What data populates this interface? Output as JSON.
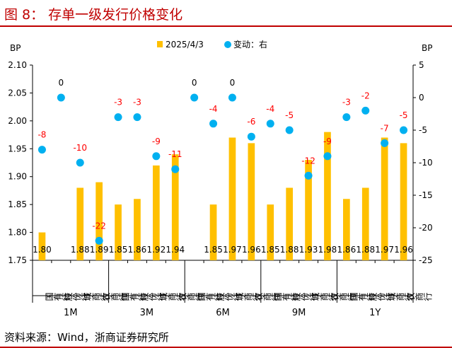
{
  "title": "图 8：   存单一级发行价格变化",
  "source": "资料来源：Wind，浙商证券研究所",
  "chart_data": {
    "type": "bar",
    "left_unit": "BP",
    "right_unit": "BP",
    "groups": [
      "1M",
      "3M",
      "6M",
      "9M",
      "1Y"
    ],
    "categories": [
      "国有行",
      "股份行",
      "城商行",
      "农商行",
      "国有行",
      "股份行",
      "城商行",
      "农商行",
      "国有行",
      "股份行",
      "城商行",
      "农商行",
      "国有行",
      "股份行",
      "城商行",
      "农商行",
      "国有行",
      "股份行",
      "城商行",
      "农商行"
    ],
    "series": [
      {
        "name": "2025/4/3",
        "type": "bar",
        "axis": "left",
        "color": "#FFC000",
        "values": [
          1.8,
          null,
          1.88,
          1.89,
          1.85,
          1.86,
          1.92,
          1.94,
          null,
          1.85,
          1.97,
          1.96,
          1.85,
          1.88,
          1.93,
          1.98,
          1.86,
          1.88,
          1.97,
          1.96
        ],
        "labels": [
          "1.80",
          "",
          "1.88",
          "1.89",
          "1.85",
          "1.86",
          "1.92",
          "1.94",
          "",
          "1.85",
          "1.97",
          "1.96",
          "1.85",
          "1.88",
          "1.93",
          "1.98",
          "1.86",
          "1.88",
          "1.97",
          "1.96"
        ]
      },
      {
        "name": "变动：右",
        "type": "scatter",
        "axis": "right",
        "color": "#00B0F0",
        "values": [
          -8,
          0,
          -10,
          -22,
          -3,
          -3,
          -9,
          -11,
          0,
          -4,
          0,
          -6,
          -4,
          -5,
          -12,
          -9,
          -3,
          -2,
          -7,
          -5
        ],
        "labels": [
          "-8",
          "0",
          "-10",
          "-22",
          "-3",
          "-3",
          "-9",
          "-11",
          "0",
          "-4",
          "0",
          "-6",
          "-4",
          "-5",
          "-12",
          "-9",
          "-3",
          "-2",
          "-7",
          "-5"
        ]
      }
    ],
    "y_left": {
      "min": 1.75,
      "max": 2.1,
      "ticks": [
        "1.75",
        "1.80",
        "1.85",
        "1.90",
        "1.95",
        "2.00",
        "2.05",
        "2.10"
      ]
    },
    "y_right": {
      "min": -25,
      "max": 5,
      "ticks": [
        "-25",
        "-20",
        "-15",
        "-10",
        "-5",
        "0",
        "5"
      ]
    },
    "legend": "top-center"
  }
}
